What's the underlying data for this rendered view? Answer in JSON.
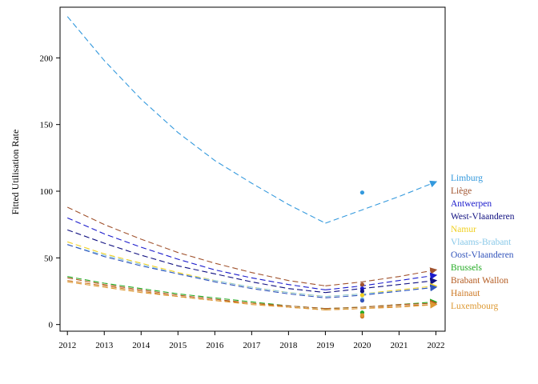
{
  "chart_data": {
    "type": "line",
    "title": "",
    "xlabel": "",
    "ylabel": "Fitted Utilisation Rate",
    "xlim": [
      2011.8,
      2022.25
    ],
    "ylim": [
      -5,
      238
    ],
    "x_ticks": [
      "2012",
      "2013",
      "2014",
      "2015",
      "2016",
      "2017",
      "2018",
      "2019",
      "2020",
      "2021",
      "2022"
    ],
    "y_ticks": [
      "0",
      "50",
      "100",
      "150",
      "200"
    ],
    "grid": false,
    "legend_position": "right",
    "line_style": "dashed",
    "series": [
      {
        "name": "Limburg",
        "color": "#3399dd",
        "x": [
          2012,
          2013,
          2014,
          2015,
          2016,
          2017,
          2018,
          2019,
          2020,
          2021,
          2022
        ],
        "y": [
          231,
          198,
          169,
          144,
          123,
          106,
          90,
          76,
          86,
          96,
          107
        ],
        "observed_2020": 99
      },
      {
        "name": "Liège",
        "color": "#a0522d",
        "x": [
          2012,
          2013,
          2014,
          2015,
          2016,
          2017,
          2018,
          2019,
          2020,
          2021,
          2022
        ],
        "y": [
          88,
          75,
          64,
          54,
          46,
          39,
          33,
          29,
          32,
          36,
          41
        ],
        "observed_2020": 30
      },
      {
        "name": "Antwerpen",
        "color": "#1a1acc",
        "x": [
          2012,
          2013,
          2014,
          2015,
          2016,
          2017,
          2018,
          2019,
          2020,
          2021,
          2022
        ],
        "y": [
          80,
          68,
          58,
          49,
          41,
          35,
          30,
          26,
          29,
          33,
          37
        ],
        "observed_2020": 27
      },
      {
        "name": "West-Vlaanderen",
        "color": "#101080",
        "x": [
          2012,
          2013,
          2014,
          2015,
          2016,
          2017,
          2018,
          2019,
          2020,
          2021,
          2022
        ],
        "y": [
          71,
          61,
          52,
          44,
          38,
          32,
          27,
          24,
          27,
          30,
          33
        ],
        "observed_2020": 25
      },
      {
        "name": "Namur",
        "color": "#f0d020",
        "x": [
          2012,
          2013,
          2014,
          2015,
          2016,
          2017,
          2018,
          2019,
          2020,
          2021,
          2022
        ],
        "y": [
          62,
          53,
          46,
          39,
          33,
          28,
          24,
          21,
          23,
          26,
          29
        ],
        "observed_2020": 22
      },
      {
        "name": "Vlaams-Brabant",
        "color": "#88c8e8",
        "x": [
          2012,
          2013,
          2014,
          2015,
          2016,
          2017,
          2018,
          2019,
          2020,
          2021,
          2022
        ],
        "y": [
          60,
          52,
          45,
          38,
          33,
          28,
          24,
          21,
          23,
          25,
          28
        ],
        "observed_2020": 19
      },
      {
        "name": "Oost-Vlaanderen",
        "color": "#3355bb",
        "x": [
          2012,
          2013,
          2014,
          2015,
          2016,
          2017,
          2018,
          2019,
          2020,
          2021,
          2022
        ],
        "y": [
          60,
          51,
          44,
          38,
          32,
          27,
          23,
          20,
          22,
          25,
          28
        ],
        "observed_2020": 18
      },
      {
        "name": "Brussels",
        "color": "#22aa22",
        "x": [
          2012,
          2013,
          2014,
          2015,
          2016,
          2017,
          2018,
          2019,
          2020,
          2021,
          2022
        ],
        "y": [
          36,
          31,
          27,
          23,
          20,
          17,
          14,
          12,
          13,
          15,
          17
        ],
        "observed_2020": 9
      },
      {
        "name": "Brabant Wallon",
        "color": "#b35a1f",
        "x": [
          2012,
          2013,
          2014,
          2015,
          2016,
          2017,
          2018,
          2019,
          2020,
          2021,
          2022
        ],
        "y": [
          35,
          30,
          26,
          22,
          19,
          16,
          14,
          12,
          13,
          15,
          16
        ],
        "observed_2020": 7
      },
      {
        "name": "Hainaut",
        "color": "#cc7722",
        "x": [
          2012,
          2013,
          2014,
          2015,
          2016,
          2017,
          2018,
          2019,
          2020,
          2021,
          2022
        ],
        "y": [
          33,
          29,
          25,
          21,
          18,
          16,
          13,
          11,
          12,
          14,
          15
        ],
        "observed_2020": 6
      },
      {
        "name": "Luxembourg",
        "color": "#dd9933",
        "x": [
          2012,
          2013,
          2014,
          2015,
          2016,
          2017,
          2018,
          2019,
          2020,
          2021,
          2022
        ],
        "y": [
          32,
          28,
          24,
          21,
          18,
          15,
          13,
          11,
          12,
          13,
          15
        ],
        "observed_2020": 7
      }
    ]
  }
}
